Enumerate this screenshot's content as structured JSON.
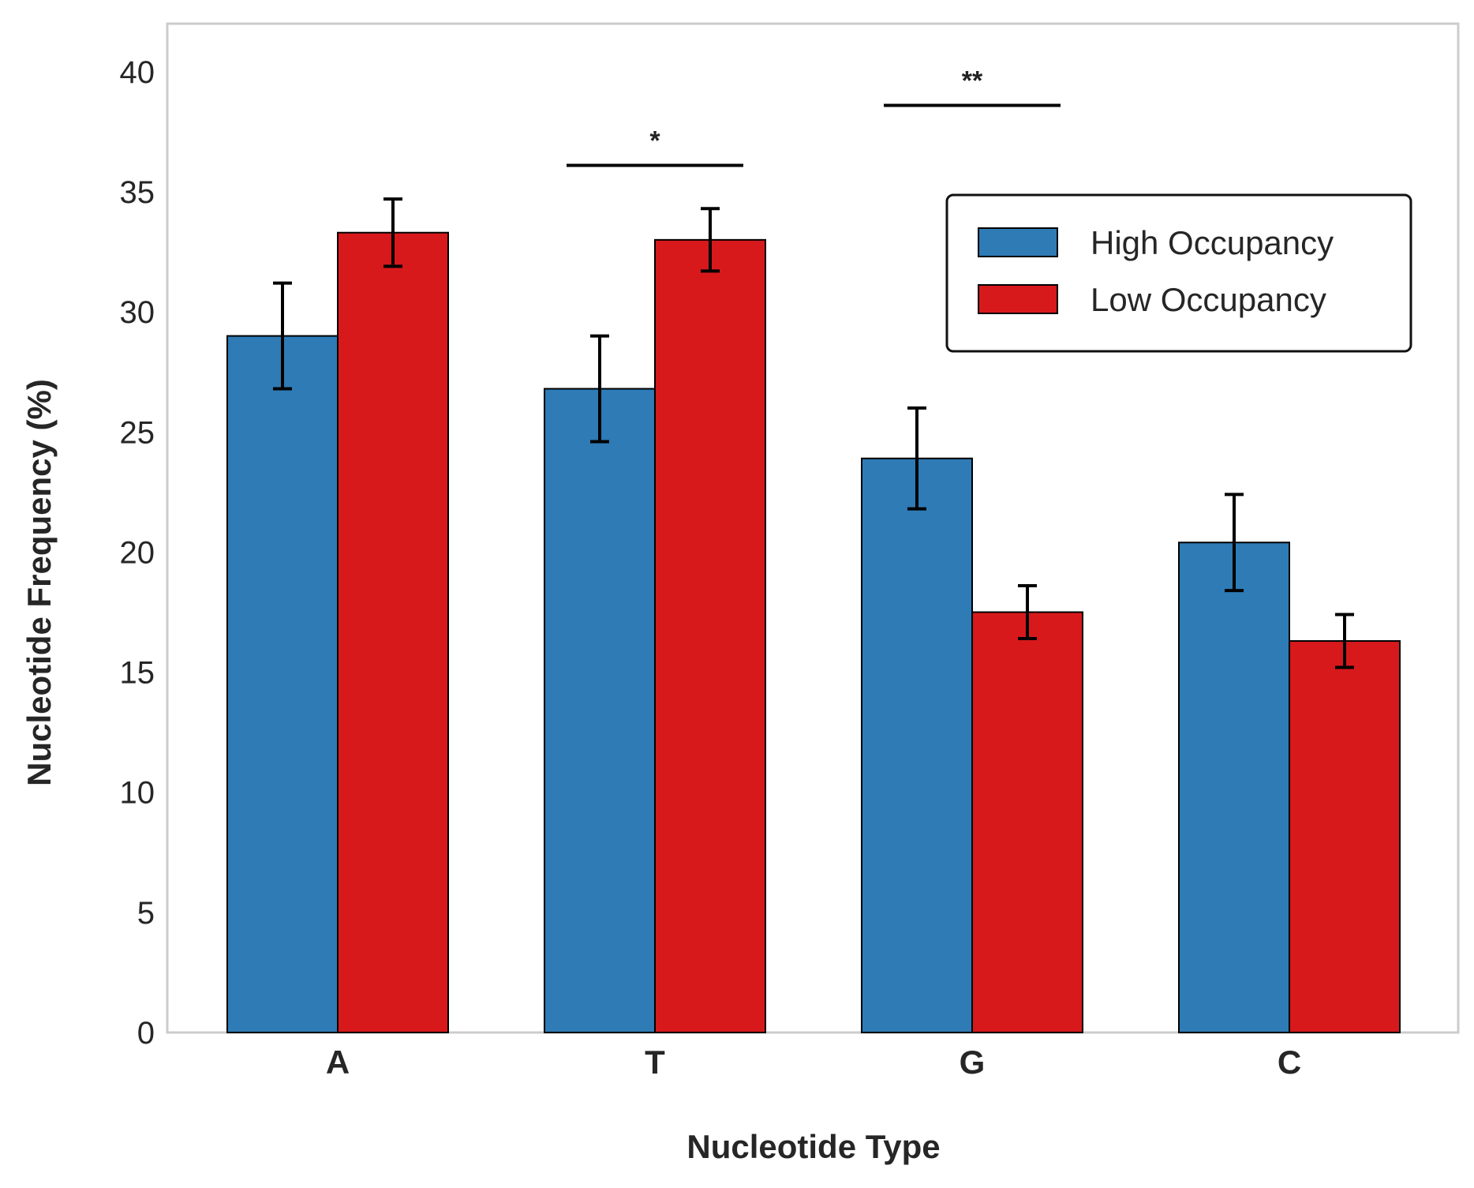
{
  "chart_data": {
    "type": "bar",
    "title": "",
    "xlabel": "Nucleotide Type",
    "ylabel": "Nucleotide Frequency (%)",
    "categories": [
      "A",
      "T",
      "G",
      "C"
    ],
    "ylim": [
      0,
      42
    ],
    "yticks": [
      0,
      5,
      10,
      15,
      20,
      25,
      30,
      35,
      40
    ],
    "grid": false,
    "legend_position": "upper right",
    "series": [
      {
        "name": "High Occupancy",
        "color": "#2E7BB6",
        "values": [
          29.0,
          26.8,
          23.9,
          20.4
        ],
        "errors": [
          2.2,
          2.2,
          2.1,
          2.0
        ]
      },
      {
        "name": "Low Occupancy",
        "color": "#D7191C",
        "values": [
          33.3,
          33.0,
          17.5,
          16.3
        ],
        "errors": [
          1.4,
          1.3,
          1.1,
          1.1
        ]
      }
    ],
    "annotations": [
      {
        "category": "T",
        "text": "*",
        "y": 36.1
      },
      {
        "category": "G",
        "text": "**",
        "y": 38.6
      }
    ]
  }
}
